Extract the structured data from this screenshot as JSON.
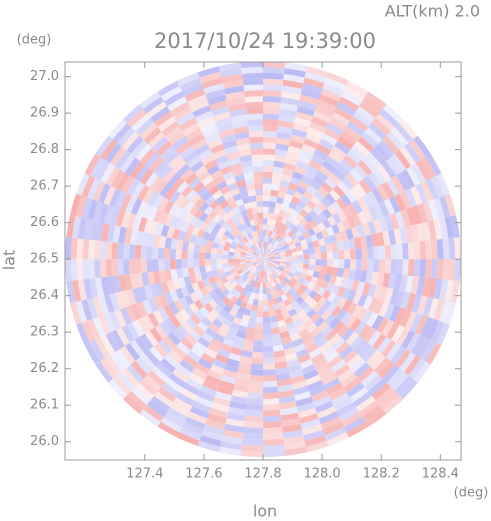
{
  "chart_data": {
    "type": "radar-ppi",
    "title": "2017/10/24 19:39:00",
    "subtitle": "ALT(km) 2.0",
    "x_label": "lon",
    "y_label": "lat",
    "x_unit": "(deg)",
    "y_unit": "(deg)",
    "xlim": [
      127.13,
      128.47
    ],
    "ylim": [
      25.95,
      27.04
    ],
    "center": [
      127.8,
      26.5
    ],
    "range_deg": 0.67,
    "xticks": [
      127.4,
      127.6,
      127.8,
      {
        "value": 128,
        "label": "128.0"
      },
      128.2,
      128.4
    ],
    "yticks": [
      {
        "value": 26,
        "label": "26.0"
      },
      26.1,
      26.2,
      26.3,
      26.4,
      26.5,
      26.6,
      26.7,
      26.8,
      26.9,
      {
        "value": 27,
        "label": "27.0"
      }
    ],
    "colors": [
      "#f6a9a9",
      "#b4b4f4"
    ]
  }
}
